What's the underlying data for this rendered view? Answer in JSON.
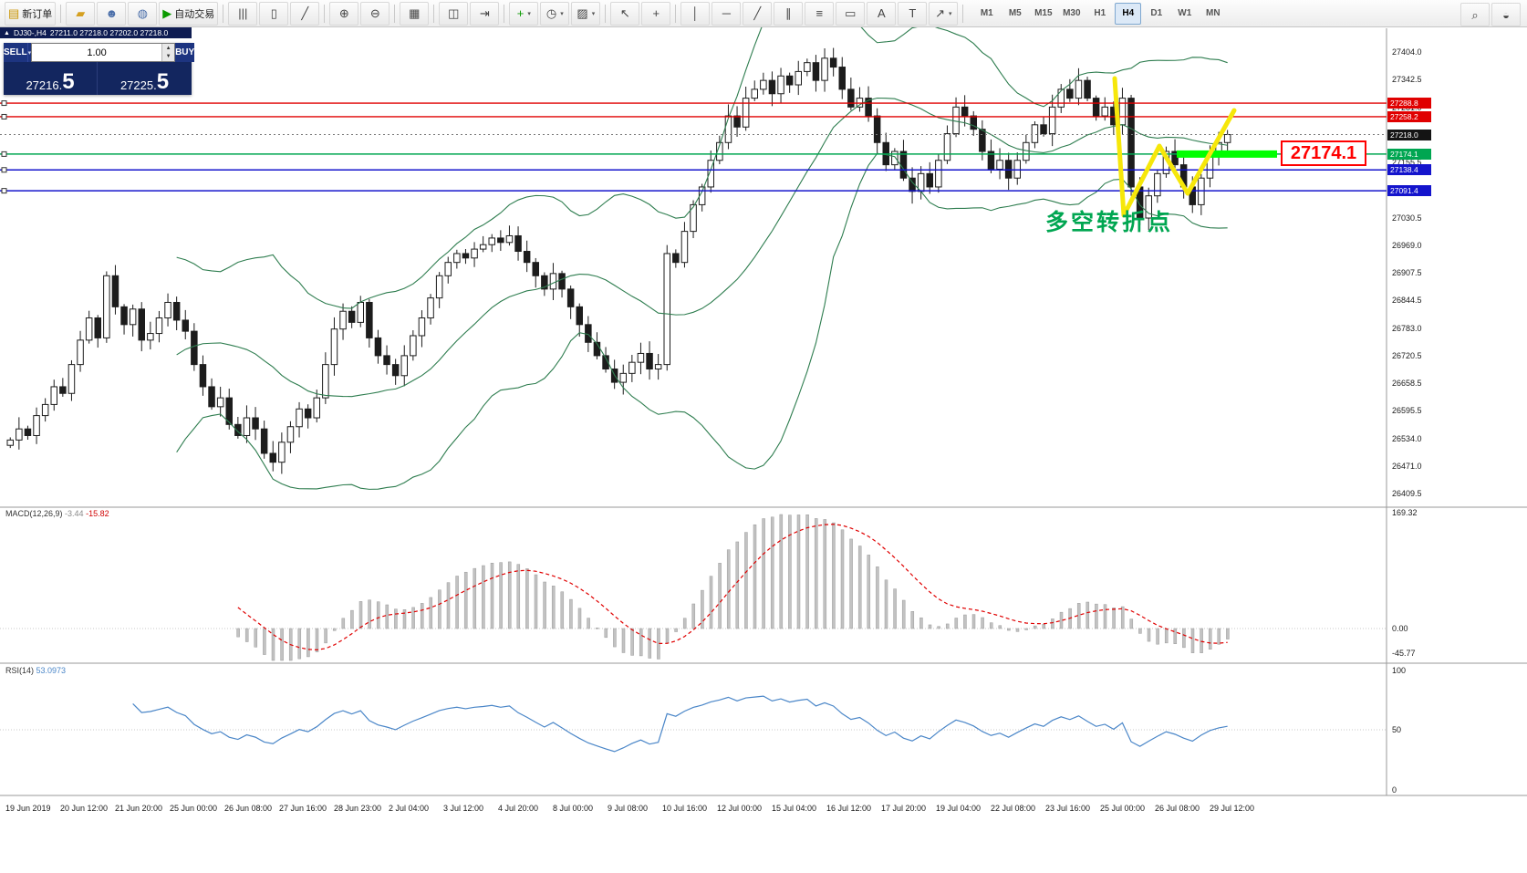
{
  "toolbar": {
    "new_order": "新订单",
    "autotrade": "自动交易",
    "items": [
      {
        "name": "new-order-button",
        "icon": "new-order-icon",
        "label": "新订单"
      },
      {
        "sep": 1
      },
      {
        "name": "wallet-button",
        "icon": "wallet-icon"
      },
      {
        "name": "user-button",
        "icon": "user-icon"
      },
      {
        "name": "globe-button",
        "icon": "globe-icon"
      },
      {
        "name": "autotrade-button",
        "icon": "autotrade-icon",
        "label": "自动交易"
      },
      {
        "sep": 1
      },
      {
        "name": "bar-chart-button",
        "icon": "bar-chart-icon"
      },
      {
        "name": "candlestick-chart-button",
        "icon": "candlestick-chart-icon"
      },
      {
        "name": "line-chart-button",
        "icon": "line-chart-icon"
      },
      {
        "sep": 1
      },
      {
        "name": "zoom-in-button",
        "icon": "zoom-in-icon"
      },
      {
        "name": "zoom-out-button",
        "icon": "zoom-out-icon"
      },
      {
        "sep": 1
      },
      {
        "name": "tile-windows-button",
        "icon": "tile-windows-icon"
      },
      {
        "sep": 1
      },
      {
        "name": "auto-arrange-button",
        "icon": "cascade-windows-icon"
      },
      {
        "name": "chart-shift-button",
        "icon": "chart-shift-icon"
      },
      {
        "sep": 1
      },
      {
        "name": "add-indicator-button",
        "icon": "add-indicator-icon",
        "caret": 1
      },
      {
        "name": "periods-button",
        "icon": "clock-icon",
        "caret": 1
      },
      {
        "name": "templates-button",
        "icon": "templates-icon",
        "caret": 1
      },
      {
        "sep": 1
      },
      {
        "name": "cursor-button",
        "icon": "cursor-icon"
      },
      {
        "name": "crosshair-button",
        "icon": "crosshair-icon"
      },
      {
        "sep": 1
      },
      {
        "name": "vertical-line-button",
        "icon": "vline-icon"
      },
      {
        "name": "horizontal-line-button",
        "icon": "hline-icon"
      },
      {
        "name": "trendline-button",
        "icon": "trendline-icon"
      },
      {
        "name": "equidistant-channel-button",
        "icon": "channel-icon"
      },
      {
        "name": "fibonacci-button",
        "icon": "fibonacci-icon"
      },
      {
        "name": "shapes-button",
        "icon": "shapes-icon"
      },
      {
        "name": "text-button",
        "icon": "text-icon"
      },
      {
        "name": "text-label-button",
        "icon": "label-icon"
      },
      {
        "name": "arrows-button",
        "icon": "arrows-icon",
        "caret": 1
      },
      {
        "sep": 1
      }
    ],
    "right_items": [
      {
        "name": "search-button",
        "icon": "search-icon"
      },
      {
        "name": "chat-button",
        "icon": "chat-icon"
      }
    ],
    "timeframes": [
      "M1",
      "M5",
      "M15",
      "M30",
      "H1",
      "H4",
      "D1",
      "W1",
      "MN"
    ],
    "active_timeframe": "H4"
  },
  "chart": {
    "tab_symbol": "DJ30-,H4",
    "tab_ohlc": "27211.0 27218.0 27202.0 27218.0"
  },
  "trade_panel": {
    "sell_label": "SELL",
    "buy_label": "BUY",
    "volume": "1.00",
    "sell_price_main": "27216.",
    "sell_price_big": "5",
    "buy_price_main": "27225.",
    "buy_price_big": "5"
  },
  "price_scale": {
    "ticks": [
      "27404.0",
      "27342.5",
      "27281.0",
      "27218.0",
      "27155.5",
      "27093.0",
      "27030.5",
      "26969.0",
      "26907.5",
      "26844.5",
      "26783.0",
      "26720.5",
      "26658.5",
      "26595.5",
      "26534.0",
      "26471.0",
      "26409.5"
    ]
  },
  "scale_badges": [
    {
      "text": "27288.8",
      "price": 27288.8,
      "color": "#e00000"
    },
    {
      "text": "27258.2",
      "price": 27258.2,
      "color": "#e00000"
    },
    {
      "text": "27218.0",
      "price": 27218.0,
      "color": "#141414"
    },
    {
      "text": "27174.1",
      "price": 27174.1,
      "color": "#00a651"
    },
    {
      "text": "27138.4",
      "price": 27138.4,
      "color": "#1414cc"
    },
    {
      "text": "27091.4",
      "price": 27091.4,
      "color": "#1414cc"
    }
  ],
  "macd": {
    "name": "MACD(12,26,9)",
    "value1": "-3.44",
    "value2": "-15.82",
    "scale": [
      "169.32",
      "0.00",
      "-45.77"
    ]
  },
  "rsi": {
    "name": "RSI(14)",
    "value": "53.0973",
    "scale": [
      "100",
      "50",
      "0"
    ]
  },
  "annotations": {
    "price_flag": "27174.1",
    "turning_point": "多空转折点",
    "highlight_color": "#00ff00",
    "zigzag_color": "#f6e70a"
  },
  "time_axis": [
    "19 Jun 2019",
    "20 Jun 12:00",
    "21 Jun 20:00",
    "25 Jun 00:00",
    "26 Jun 08:00",
    "27 Jun 16:00",
    "28 Jun 23:00",
    "2 Jul 04:00",
    "3 Jul 12:00",
    "4 Jul 20:00",
    "8 Jul 00:00",
    "9 Jul 08:00",
    "10 Jul 16:00",
    "12 Jul 00:00",
    "15 Jul 04:00",
    "16 Jul 12:00",
    "17 Jul 20:00",
    "19 Jul 04:00",
    "22 Jul 08:00",
    "23 Jul 16:00",
    "25 Jul 00:00",
    "26 Jul 08:00",
    "29 Jul 12:00"
  ],
  "chart_data": {
    "type": "candlestick",
    "symbol": "DJ30",
    "timeframe": "H4",
    "price_axis": {
      "min": 26409.5,
      "max": 27404.0
    },
    "levels": {
      "red": [
        27288.8,
        27258.2
      ],
      "green": [
        27174.1
      ],
      "blue": [
        27138.4,
        27091.4
      ],
      "current": 27218.0
    },
    "closes": [
      26530,
      26555,
      26540,
      26585,
      26610,
      26650,
      26635,
      26700,
      26755,
      26805,
      26760,
      26900,
      26830,
      26790,
      26825,
      26755,
      26770,
      26805,
      26840,
      26800,
      26775,
      26700,
      26650,
      26605,
      26625,
      26565,
      26540,
      26580,
      26555,
      26500,
      26480,
      26525,
      26560,
      26600,
      26580,
      26625,
      26700,
      26780,
      26820,
      26795,
      26840,
      26760,
      26720,
      26700,
      26675,
      26720,
      26765,
      26805,
      26850,
      26900,
      26930,
      26950,
      26940,
      26960,
      26970,
      26985,
      26975,
      26990,
      26955,
      26930,
      26900,
      26870,
      26905,
      26870,
      26830,
      26790,
      26750,
      26720,
      26690,
      26660,
      26680,
      26705,
      26725,
      26690,
      26700,
      26950,
      26930,
      27000,
      27060,
      27100,
      27160,
      27200,
      27260,
      27235,
      27300,
      27320,
      27340,
      27310,
      27350,
      27330,
      27360,
      27380,
      27340,
      27390,
      27370,
      27320,
      27280,
      27300,
      27260,
      27200,
      27150,
      27180,
      27120,
      27090,
      27130,
      27100,
      27160,
      27220,
      27280,
      27260,
      27230,
      27180,
      27140,
      27160,
      27120,
      27160,
      27200,
      27240,
      27220,
      27280,
      27320,
      27300,
      27340,
      27300,
      27260,
      27280,
      27240,
      27300,
      27100,
      27030,
      27080,
      27130,
      27180,
      27150,
      27100,
      27060,
      27120,
      27170,
      27200,
      27218
    ]
  }
}
